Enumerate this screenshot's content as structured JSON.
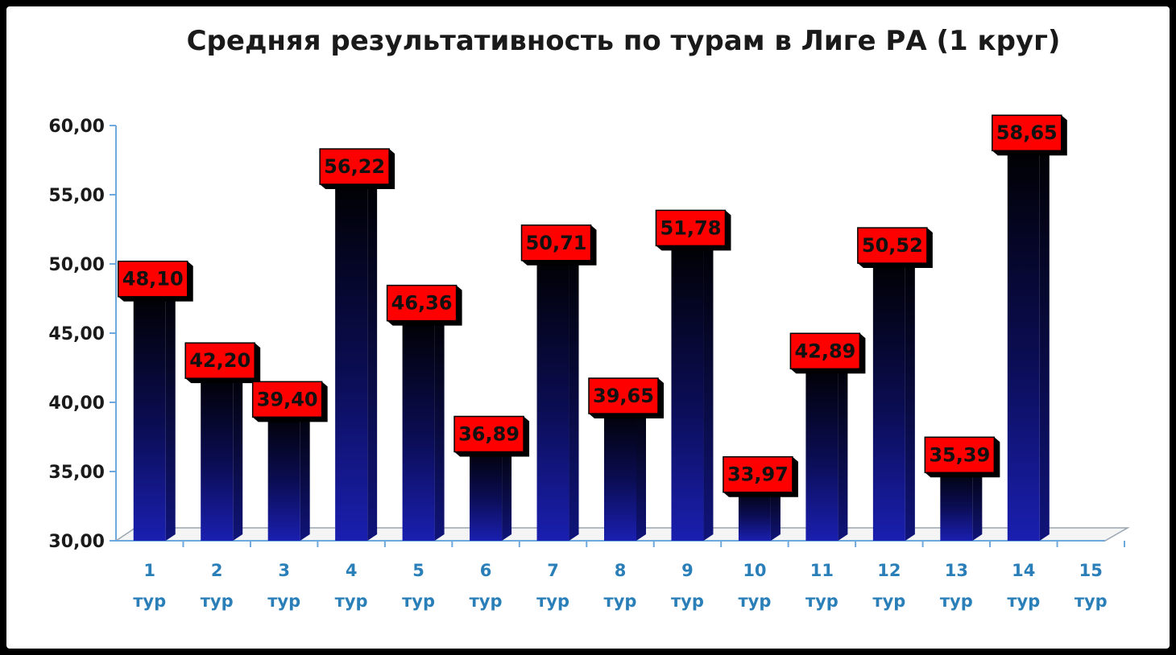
{
  "chart_data": {
    "type": "bar",
    "title": "Средняя результативность по турам в Лиге РА (1 круг)",
    "xlabel": "",
    "ylabel": "",
    "categories": [
      [
        "1",
        "тур"
      ],
      [
        "2",
        "тур"
      ],
      [
        "3",
        "тур"
      ],
      [
        "4",
        "тур"
      ],
      [
        "5",
        "тур"
      ],
      [
        "6",
        "тур"
      ],
      [
        "7",
        "тур"
      ],
      [
        "8",
        "тур"
      ],
      [
        "9",
        "тур"
      ],
      [
        "10",
        "тур"
      ],
      [
        "11",
        "тур"
      ],
      [
        "12",
        "тур"
      ],
      [
        "13",
        "тур"
      ],
      [
        "14",
        "тур"
      ],
      [
        "15",
        "тур"
      ]
    ],
    "values": [
      48.1,
      42.2,
      39.4,
      56.22,
      46.36,
      36.89,
      50.71,
      39.65,
      51.78,
      33.97,
      42.89,
      50.52,
      35.39,
      58.65,
      null
    ],
    "value_labels": [
      "48,10",
      "42,20",
      "39,40",
      "56,22",
      "46,36",
      "36,89",
      "50,71",
      "39,65",
      "51,78",
      "33,97",
      "42,89",
      "50,52",
      "35,39",
      "58,65",
      ""
    ],
    "ylim": [
      30,
      60
    ],
    "yticks": [
      "30,00",
      "35,00",
      "40,00",
      "45,00",
      "50,00",
      "55,00",
      "60,00"
    ],
    "ytick_values": [
      30,
      35,
      40,
      45,
      50,
      55,
      60
    ],
    "grid": false,
    "legend": "none",
    "colors": {
      "bar_top": "#000000",
      "bar_bottom": "#1a1fb0",
      "label_fill": "#ff0000",
      "axis": "#6fa8dc",
      "xtick_text": "#2a7fb8"
    }
  }
}
